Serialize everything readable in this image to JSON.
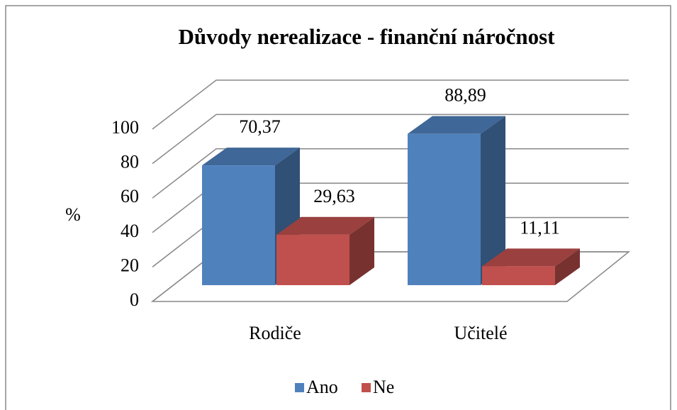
{
  "chart_data": {
    "type": "bar3d",
    "title": "Důvody nerealizace - finanční náročnost",
    "y_label": "%",
    "categories": [
      "Rodiče",
      "Učitelé"
    ],
    "series": [
      {
        "name": "Ano",
        "color": "#4f81bd",
        "values": [
          70.37,
          88.89
        ],
        "value_labels": [
          "70,37",
          "88,89"
        ]
      },
      {
        "name": "Ne",
        "color": "#c0504d",
        "values": [
          29.63,
          11.11
        ],
        "value_labels": [
          "29,63",
          "11,11"
        ]
      }
    ],
    "ylim": [
      0,
      100
    ],
    "yticks": [
      0,
      20,
      40,
      60,
      80,
      100
    ],
    "grid": true,
    "legend": "bottom"
  }
}
